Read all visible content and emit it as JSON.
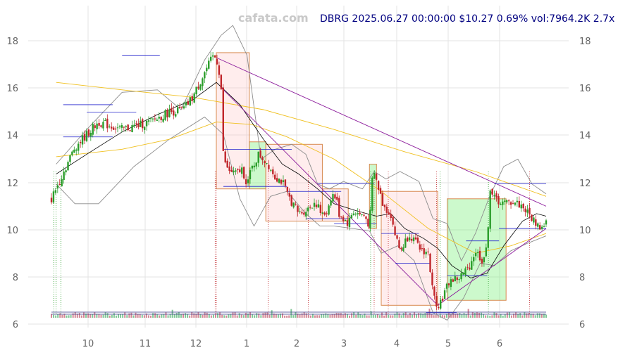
{
  "header": {
    "watermark": "cafata.com",
    "info": "DBRG 2025.06.27 00:00:00 $10.27 0.69% vol:7964.2K 2.7x"
  },
  "chart_data": {
    "type": "candlestick",
    "ticker": "DBRG",
    "last_close": 10.27,
    "ylim": [
      6,
      19
    ],
    "y_ticks": [
      "6",
      "8",
      "10",
      "12",
      "14",
      "16",
      "18"
    ],
    "x_ticks": [
      "10",
      "11",
      "12",
      "1",
      "2",
      "3",
      "4",
      "5",
      "6"
    ],
    "colors": {
      "up": "#2a9d2a",
      "down": "#c0262b",
      "ma_fast": "#000000",
      "ma_slow": "#f0c020",
      "band": "#888888",
      "trend": "#8b1a9b",
      "level": "#2222cc"
    },
    "close_path": [
      [
        0.0,
        11.2
      ],
      [
        1.0,
        13.3
      ],
      [
        2.0,
        14.3
      ],
      [
        3.0,
        14.0
      ],
      [
        4.2,
        14.3
      ],
      [
        5.0,
        14.7
      ],
      [
        5.6,
        14.8
      ],
      [
        6.0,
        15.3
      ],
      [
        6.5,
        16.3
      ],
      [
        6.9,
        17.0
      ],
      [
        7.05,
        16.7
      ],
      [
        7.2,
        15.9
      ],
      [
        7.25,
        13.2
      ],
      [
        7.45,
        12.4
      ],
      [
        7.8,
        12.2
      ],
      [
        8.1,
        12.4
      ],
      [
        8.3,
        11.8
      ],
      [
        8.5,
        12.4
      ],
      [
        8.8,
        13.0
      ],
      [
        9.2,
        12.6
      ],
      [
        9.5,
        12.1
      ],
      [
        9.8,
        11.9
      ],
      [
        10.0,
        11.4
      ],
      [
        10.5,
        10.6
      ],
      [
        10.9,
        10.8
      ],
      [
        11.2,
        11.1
      ],
      [
        11.5,
        10.5
      ],
      [
        11.7,
        10.7
      ],
      [
        11.9,
        11.4
      ],
      [
        12.1,
        11.2
      ],
      [
        12.2,
        10.6
      ],
      [
        12.4,
        10.4
      ],
      [
        12.6,
        10.2
      ],
      [
        12.8,
        10.7
      ],
      [
        13.0,
        10.6
      ],
      [
        13.3,
        10.5
      ],
      [
        13.5,
        10.1
      ],
      [
        13.65,
        12.4
      ],
      [
        13.8,
        11.9
      ],
      [
        14.1,
        10.9
      ],
      [
        14.4,
        10.6
      ],
      [
        14.6,
        9.7
      ],
      [
        14.8,
        9.1
      ],
      [
        15.2,
        9.8
      ],
      [
        15.6,
        9.2
      ],
      [
        16.0,
        9.0
      ],
      [
        16.2,
        7.3
      ],
      [
        16.4,
        6.9
      ],
      [
        16.6,
        7.2
      ],
      [
        16.9,
        7.9
      ],
      [
        17.3,
        8.0
      ],
      [
        17.7,
        8.4
      ],
      [
        18.0,
        9.1
      ],
      [
        18.3,
        8.7
      ],
      [
        18.5,
        9.2
      ],
      [
        18.6,
        11.7
      ],
      [
        18.8,
        11.2
      ],
      [
        19.2,
        11.0
      ],
      [
        19.6,
        11.1
      ],
      [
        20.0,
        10.9
      ],
      [
        20.4,
        10.4
      ],
      [
        20.8,
        10.0
      ],
      [
        21.0,
        10.27
      ]
    ],
    "ma_fast": [
      [
        0.2,
        12.2
      ],
      [
        1.5,
        13.0
      ],
      [
        3.0,
        13.9
      ],
      [
        4.5,
        14.6
      ],
      [
        6.0,
        15.2
      ],
      [
        7.0,
        15.9
      ],
      [
        8.0,
        15.0
      ],
      [
        9.0,
        13.6
      ],
      [
        9.8,
        12.6
      ],
      [
        10.5,
        12.2
      ],
      [
        11.3,
        11.6
      ],
      [
        12.0,
        11.0
      ],
      [
        13.0,
        10.7
      ],
      [
        13.8,
        10.5
      ],
      [
        14.4,
        10.6
      ],
      [
        15.0,
        10.0
      ],
      [
        15.8,
        9.6
      ],
      [
        16.4,
        9.2
      ],
      [
        17.0,
        8.5
      ],
      [
        17.8,
        8.0
      ],
      [
        18.5,
        8.2
      ],
      [
        19.2,
        9.3
      ],
      [
        20.0,
        10.3
      ],
      [
        20.6,
        10.6
      ],
      [
        21.0,
        10.5
      ]
    ],
    "ma_slow": [
      [
        0.2,
        15.9
      ],
      [
        3.0,
        15.6
      ],
      [
        6.0,
        15.3
      ],
      [
        9.0,
        14.8
      ],
      [
        12.0,
        14.0
      ],
      [
        15.0,
        13.1
      ],
      [
        18.0,
        12.3
      ],
      [
        19.5,
        11.8
      ],
      [
        21.0,
        11.3
      ]
    ],
    "ma_slow_lower": [
      [
        0.2,
        12.9
      ],
      [
        3.0,
        13.2
      ],
      [
        5.0,
        13.6
      ],
      [
        7.0,
        14.3
      ],
      [
        8.5,
        14.2
      ],
      [
        10.0,
        13.7
      ],
      [
        12.0,
        12.8
      ],
      [
        14.0,
        11.5
      ],
      [
        16.0,
        10.0
      ],
      [
        18.0,
        9.0
      ],
      [
        19.5,
        9.3
      ],
      [
        21.0,
        9.8
      ]
    ],
    "band_upper": [
      [
        0.2,
        12.6
      ],
      [
        1.5,
        14.0
      ],
      [
        3.0,
        15.5
      ],
      [
        4.5,
        15.6
      ],
      [
        5.5,
        14.8
      ],
      [
        6.5,
        16.8
      ],
      [
        7.2,
        17.8
      ],
      [
        7.7,
        18.2
      ],
      [
        8.3,
        17.0
      ],
      [
        8.9,
        12.8
      ],
      [
        9.5,
        13.2
      ],
      [
        10.2,
        13.4
      ],
      [
        10.8,
        13.0
      ],
      [
        11.3,
        11.8
      ],
      [
        11.8,
        11.6
      ],
      [
        12.4,
        11.9
      ],
      [
        13.2,
        11.6
      ],
      [
        13.7,
        12.3
      ],
      [
        14.2,
        12.0
      ],
      [
        14.8,
        12.3
      ],
      [
        15.6,
        11.9
      ],
      [
        16.2,
        10.4
      ],
      [
        16.8,
        10.2
      ],
      [
        17.4,
        8.7
      ],
      [
        18.0,
        9.8
      ],
      [
        18.6,
        11.3
      ],
      [
        19.2,
        12.5
      ],
      [
        19.8,
        12.8
      ],
      [
        20.4,
        11.8
      ],
      [
        21.0,
        11.4
      ]
    ],
    "band_lower": [
      [
        0.2,
        11.8
      ],
      [
        1.0,
        11.0
      ],
      [
        2.0,
        11.0
      ],
      [
        3.5,
        12.5
      ],
      [
        5.0,
        13.6
      ],
      [
        6.5,
        14.5
      ],
      [
        7.3,
        13.8
      ],
      [
        8.0,
        11.2
      ],
      [
        8.6,
        10.1
      ],
      [
        9.3,
        11.3
      ],
      [
        10.0,
        11.5
      ],
      [
        10.8,
        10.6
      ],
      [
        11.4,
        10.1
      ],
      [
        12.0,
        10.1
      ],
      [
        12.8,
        10.0
      ],
      [
        13.5,
        9.9
      ],
      [
        14.0,
        9.0
      ],
      [
        14.7,
        9.3
      ],
      [
        15.4,
        8.7
      ],
      [
        16.2,
        6.6
      ],
      [
        16.8,
        6.3
      ],
      [
        17.5,
        7.2
      ],
      [
        18.2,
        8.6
      ],
      [
        18.8,
        8.5
      ],
      [
        19.5,
        9.1
      ],
      [
        20.2,
        9.4
      ],
      [
        21.0,
        9.7
      ]
    ],
    "trend_lines": [
      {
        "from": [
          7.0,
          16.9
        ],
        "to": [
          21.0,
          10.9
        ]
      },
      {
        "from": [
          7.2,
          15.7
        ],
        "to": [
          16.4,
          6.9
        ]
      },
      {
        "from": [
          16.4,
          6.9
        ],
        "to": [
          21.0,
          10.0
        ]
      }
    ],
    "zones": [
      {
        "x0": 7.0,
        "x1": 8.4,
        "y0": 11.6,
        "y1": 17.1,
        "kind": "down"
      },
      {
        "x0": 8.4,
        "x1": 9.1,
        "y0": 11.6,
        "y1": 13.5,
        "kind": "up"
      },
      {
        "x0": 9.1,
        "x1": 11.5,
        "y0": 10.3,
        "y1": 13.4,
        "kind": "down"
      },
      {
        "x0": 11.5,
        "x1": 12.6,
        "y0": 10.3,
        "y1": 11.6,
        "kind": "down"
      },
      {
        "x0": 13.5,
        "x1": 13.8,
        "y0": 10.0,
        "y1": 12.6,
        "kind": "up"
      },
      {
        "x0": 14.0,
        "x1": 16.4,
        "y0": 6.9,
        "y1": 11.5,
        "kind": "down"
      },
      {
        "x0": 16.8,
        "x1": 19.3,
        "y0": 7.1,
        "y1": 11.2,
        "kind": "up"
      }
    ],
    "levels": [
      {
        "x0": 3.0,
        "x1": 4.6,
        "y": 17.0
      },
      {
        "x0": 0.5,
        "x1": 2.6,
        "y": 15.0
      },
      {
        "x0": 1.5,
        "x1": 3.6,
        "y": 14.7
      },
      {
        "x0": 0.5,
        "x1": 2.6,
        "y": 13.7
      },
      {
        "x0": 7.3,
        "x1": 10.2,
        "y": 13.2
      },
      {
        "x0": 7.3,
        "x1": 10.0,
        "y": 11.7
      },
      {
        "x0": 10.0,
        "x1": 12.3,
        "y": 11.5
      },
      {
        "x0": 11.3,
        "x1": 13.7,
        "y": 11.8
      },
      {
        "x0": 10.8,
        "x1": 12.6,
        "y": 10.4
      },
      {
        "x0": 12.0,
        "x1": 13.8,
        "y": 10.2
      },
      {
        "x0": 14.0,
        "x1": 15.6,
        "y": 9.8
      },
      {
        "x0": 14.6,
        "x1": 16.1,
        "y": 8.6
      },
      {
        "x0": 15.9,
        "x1": 17.2,
        "y": 6.6
      },
      {
        "x0": 16.8,
        "x1": 18.5,
        "y": 8.1
      },
      {
        "x0": 17.6,
        "x1": 19.0,
        "y": 9.5
      },
      {
        "x0": 18.8,
        "x1": 21.0,
        "y": 11.8
      },
      {
        "x0": 19.0,
        "x1": 21.0,
        "y": 10.0
      }
    ],
    "event_markers": [
      {
        "x": 0.1,
        "color": "green"
      },
      {
        "x": 0.2,
        "color": "green"
      },
      {
        "x": 0.4,
        "color": "green"
      },
      {
        "x": 6.95,
        "color": "red"
      },
      {
        "x": 7.0,
        "color": "red"
      },
      {
        "x": 9.2,
        "color": "red"
      },
      {
        "x": 10.9,
        "color": "red"
      },
      {
        "x": 13.55,
        "color": "green"
      },
      {
        "x": 13.7,
        "color": "red"
      },
      {
        "x": 14.3,
        "color": "red"
      },
      {
        "x": 16.35,
        "color": "red"
      },
      {
        "x": 16.5,
        "color": "green"
      },
      {
        "x": 18.55,
        "color": "green"
      },
      {
        "x": 20.3,
        "color": "red"
      }
    ]
  }
}
